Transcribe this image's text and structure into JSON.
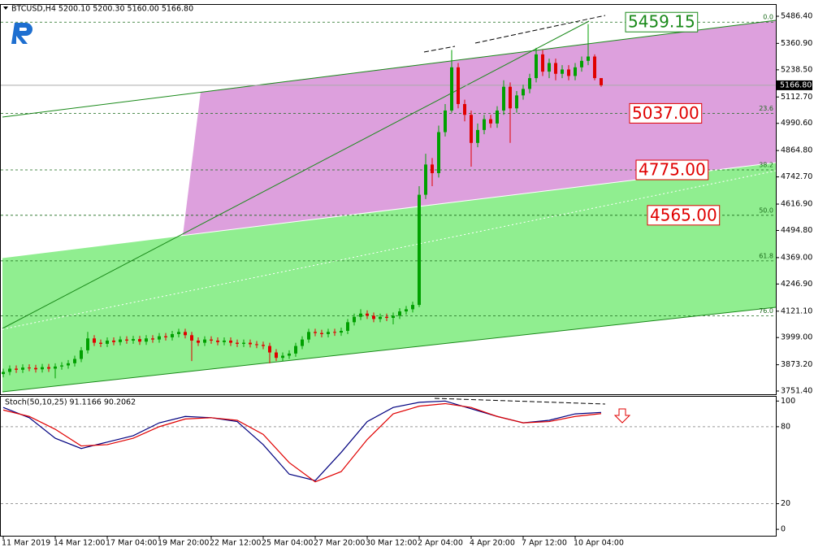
{
  "chart_data": [
    {
      "type": "candlestick",
      "title": "BTCUSD,H4  5200.10 5200.30 5160.00 5166.80",
      "categories": [
        "11 Mar 2019",
        null,
        null,
        null,
        null,
        null,
        null,
        null,
        "14 Mar 12:00",
        null,
        null,
        null,
        null,
        null,
        null,
        null,
        "17 Mar 04:00",
        null,
        null,
        null,
        null,
        null,
        null,
        null,
        "19 Mar 20:00",
        null,
        null,
        null,
        null,
        null,
        null,
        null,
        "22 Mar 12:00",
        null,
        null,
        null,
        null,
        null,
        null,
        null,
        "25 Mar 04:00",
        null,
        null,
        null,
        null,
        null,
        null,
        null,
        "27 Mar 20:00",
        null,
        null,
        null,
        null,
        null,
        null,
        null,
        "30 Mar 12:00",
        null,
        null,
        null,
        null,
        null,
        null,
        null,
        "2 Apr 04:00",
        null,
        null,
        null,
        null,
        null,
        null,
        null,
        "4 Apr 20:00",
        null,
        null,
        null,
        null,
        null,
        null,
        null,
        "7 Apr 12:00",
        null,
        null,
        null,
        null,
        null,
        null,
        null,
        "10 Apr 04:00",
        null,
        null,
        null,
        null
      ],
      "open": [
        3830,
        3840,
        3855,
        3850,
        3860,
        3858,
        3852,
        3862,
        3855,
        3865,
        3870,
        3880,
        3900,
        3940,
        3995,
        3975,
        3970,
        3985,
        3978,
        3990,
        3985,
        3992,
        3980,
        3995,
        3990,
        4005,
        4000,
        4015,
        4025,
        4010,
        3985,
        3975,
        3990,
        3985,
        3978,
        3985,
        3975,
        3970,
        3975,
        3968,
        3965,
        3960,
        3930,
        3905,
        3915,
        3925,
        3960,
        3990,
        4025,
        4020,
        4015,
        4025,
        4022,
        4030,
        4070,
        4095,
        4110,
        4100,
        4085,
        4095,
        4090,
        4100,
        4120,
        4130,
        4150,
        4660,
        4800,
        4760,
        4950,
        5050,
        5250,
        5080,
        5030,
        4900,
        4960,
        5010,
        4990,
        5050,
        5160,
        5060,
        5120,
        5150,
        5200,
        5310,
        5230,
        5270,
        5220,
        5240,
        5210,
        5250,
        5280,
        5300,
        5200.1
      ],
      "high": [
        3855,
        3870,
        3870,
        3875,
        3875,
        3873,
        3877,
        3877,
        3880,
        3885,
        3895,
        3915,
        3955,
        4025,
        4010,
        3990,
        4000,
        4000,
        4005,
        4005,
        4007,
        4007,
        4010,
        4010,
        4020,
        4020,
        4030,
        4040,
        4040,
        4025,
        4000,
        4005,
        4005,
        4000,
        4000,
        4000,
        3990,
        3990,
        3990,
        3983,
        3980,
        3975,
        3945,
        3930,
        3940,
        3975,
        4005,
        4040,
        4040,
        4035,
        4040,
        4040,
        4045,
        4085,
        4110,
        4130,
        4125,
        4115,
        4110,
        4110,
        4115,
        4135,
        4145,
        4165,
        4700,
        4850,
        4830,
        4980,
        5080,
        5330,
        5270,
        5100,
        5050,
        4990,
        5030,
        5030,
        5070,
        5190,
        5180,
        5140,
        5170,
        5220,
        5340,
        5330,
        5290,
        5290,
        5260,
        5260,
        5270,
        5300,
        5450,
        5310,
        5200.3
      ],
      "low": [
        3815,
        3825,
        3835,
        3835,
        3843,
        3837,
        3837,
        3840,
        3810,
        3850,
        3855,
        3865,
        3885,
        3925,
        3960,
        3955,
        3955,
        3963,
        3963,
        3970,
        3970,
        3965,
        3965,
        3975,
        3975,
        3985,
        3985,
        4000,
        3995,
        3890,
        3960,
        3960,
        3970,
        3963,
        3963,
        3960,
        3955,
        3955,
        3953,
        3950,
        3945,
        3880,
        3890,
        3890,
        3900,
        3910,
        3945,
        3975,
        4005,
        4000,
        4000,
        4007,
        4007,
        4015,
        4055,
        4080,
        4085,
        4070,
        4070,
        4075,
        4060,
        4085,
        4105,
        4115,
        4140,
        4640,
        4700,
        4740,
        4930,
        5040,
        5060,
        5000,
        4790,
        4880,
        4940,
        4970,
        4970,
        5030,
        4900,
        5040,
        5100,
        5130,
        5180,
        5210,
        5200,
        5190,
        5200,
        5190,
        5190,
        5230,
        5260,
        5190,
        5160
      ],
      "close": [
        3840,
        3855,
        3850,
        3860,
        3858,
        3852,
        3862,
        3855,
        3865,
        3870,
        3880,
        3900,
        3940,
        3995,
        3975,
        3970,
        3985,
        3978,
        3990,
        3985,
        3992,
        3980,
        3995,
        3990,
        4005,
        4000,
        4015,
        4025,
        4010,
        3985,
        3975,
        3990,
        3985,
        3978,
        3985,
        3975,
        3970,
        3975,
        3968,
        3965,
        3960,
        3930,
        3905,
        3915,
        3925,
        3960,
        3990,
        4025,
        4020,
        4015,
        4025,
        4022,
        4030,
        4070,
        4095,
        4110,
        4100,
        4085,
        4095,
        4090,
        4100,
        4120,
        4130,
        4150,
        4660,
        4800,
        4760,
        4950,
        5050,
        5250,
        5080,
        5030,
        4900,
        4960,
        5010,
        4990,
        5050,
        5160,
        5060,
        5120,
        5150,
        5200,
        5310,
        5230,
        5270,
        5220,
        5240,
        5210,
        5250,
        5280,
        5300,
        5200.1,
        5166.8
      ],
      "up_color": "#00a000",
      "down_color": "#e00000",
      "ylim": [
        3736.35,
        5542.85
      ],
      "yticks": [
        {
          "value": 5486.4,
          "label": "5486.40"
        },
        {
          "value": 5360.9,
          "label": "5360.90"
        },
        {
          "value": 5238.5,
          "label": "5238.50"
        },
        {
          "value": 5112.7,
          "label": "5112.70"
        },
        {
          "value": 4990.6,
          "label": "4990.60"
        },
        {
          "value": 4864.8,
          "label": "4864.80"
        },
        {
          "value": 4742.7,
          "label": "4742.70"
        },
        {
          "value": 4616.9,
          "label": "4616.90"
        },
        {
          "value": 4494.8,
          "label": "4494.80"
        },
        {
          "value": 4369,
          "label": "4369.00"
        },
        {
          "value": 4246.9,
          "label": "4246.90"
        },
        {
          "value": 4121.1,
          "label": "4121.10"
        },
        {
          "value": 3999,
          "label": "3999.00"
        },
        {
          "value": 3873.2,
          "label": "3873.20"
        },
        {
          "value": 3751.4,
          "label": "3751.40"
        }
      ],
      "last_price": {
        "value": 5166.8,
        "label": "5166.80"
      },
      "fib_levels": [
        {
          "ratio": "0.0",
          "price": 5459.15
        },
        {
          "ratio": "23.6",
          "price": 5037
        },
        {
          "ratio": "38.2",
          "price": 4775
        },
        {
          "ratio": "50.0",
          "price": 4565
        },
        {
          "ratio": "61.8",
          "price": 4354
        },
        {
          "ratio": "76.0",
          "price": 4100
        }
      ],
      "price_labels": [
        {
          "value": 5459.15,
          "label": "5459.15",
          "color": "#1a8a1a"
        },
        {
          "value": 5037,
          "label": "5037.00",
          "color": "#e00000"
        },
        {
          "value": 4775,
          "label": "4775.00",
          "color": "#e00000"
        },
        {
          "value": 4565,
          "label": "4565.00",
          "color": "#e00000"
        }
      ]
    },
    {
      "type": "line",
      "title": "Stoch(50,10,25) 91.1166 90.2062",
      "series": [
        {
          "color": "#00007f",
          "values": [
            95,
            87,
            71,
            63,
            68,
            73,
            83,
            88,
            87,
            84,
            66,
            43,
            38,
            60,
            84,
            95,
            99,
            100,
            94,
            88,
            83,
            85,
            90,
            91.1166
          ]
        },
        {
          "color": "#e00000",
          "values": [
            93,
            88,
            78,
            65,
            66,
            71,
            80,
            86,
            87,
            85,
            74,
            52,
            37,
            45,
            70,
            90,
            96,
            98,
            95,
            88,
            83,
            84,
            88,
            90.2062
          ]
        }
      ],
      "ylim": [
        -5,
        104
      ],
      "yticks": [
        100,
        80,
        20,
        0
      ],
      "levels": [
        80,
        20
      ]
    }
  ]
}
